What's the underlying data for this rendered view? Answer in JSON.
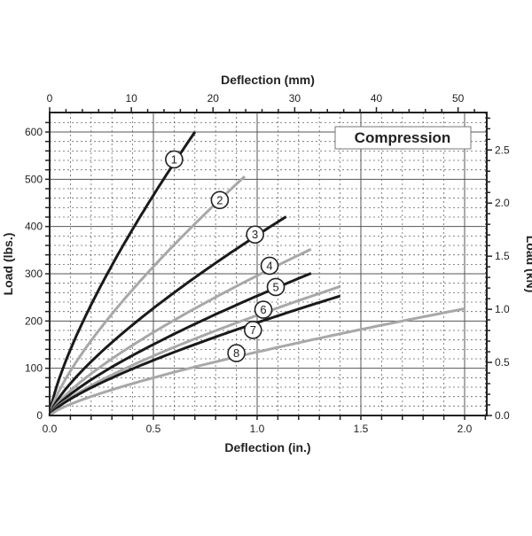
{
  "chart_data": {
    "type": "line",
    "title": "Compression",
    "xlabel": "Deflection (in.)",
    "ylabel": "Load (lbs.)",
    "x2label": "Deflection (mm)",
    "y2label": "Load (kN)",
    "xlim": [
      0,
      2.1
    ],
    "ylim": [
      0,
      640
    ],
    "xticks": [
      "0.0",
      "0.5",
      "1.0",
      "1.5",
      "2.0"
    ],
    "yticks": [
      "0",
      "100",
      "200",
      "300",
      "400",
      "500",
      "600"
    ],
    "x2ticks": [
      "0",
      "10",
      "20",
      "30",
      "40",
      "50"
    ],
    "y2ticks": [
      "0.0",
      "0.5",
      "1.0",
      "1.5",
      "2.0",
      "2.5"
    ],
    "grid": true,
    "curve_exponent": 0.75,
    "series": [
      {
        "name": "1",
        "color": "#1a1a1a",
        "end": [
          0.7,
          600
        ],
        "label_at": [
          0.6,
          542
        ]
      },
      {
        "name": "2",
        "color": "#a8a8a8",
        "end": [
          0.94,
          506
        ],
        "label_at": [
          0.82,
          456
        ]
      },
      {
        "name": "3",
        "color": "#1a1a1a",
        "end": [
          1.14,
          421
        ],
        "label_at": [
          0.99,
          383
        ]
      },
      {
        "name": "4",
        "color": "#a8a8a8",
        "end": [
          1.26,
          352
        ],
        "label_at": [
          1.06,
          317
        ]
      },
      {
        "name": "5",
        "color": "#1a1a1a",
        "end": [
          1.26,
          301
        ],
        "label_at": [
          1.09,
          272
        ]
      },
      {
        "name": "6",
        "color": "#a8a8a8",
        "end": [
          1.4,
          273
        ],
        "label_at": [
          1.03,
          224
        ]
      },
      {
        "name": "7",
        "color": "#1a1a1a",
        "end": [
          1.4,
          253
        ],
        "label_at": [
          0.98,
          181
        ]
      },
      {
        "name": "8",
        "color": "#a8a8a8",
        "end": [
          2.0,
          226
        ],
        "label_at": [
          0.9,
          132
        ]
      }
    ]
  }
}
